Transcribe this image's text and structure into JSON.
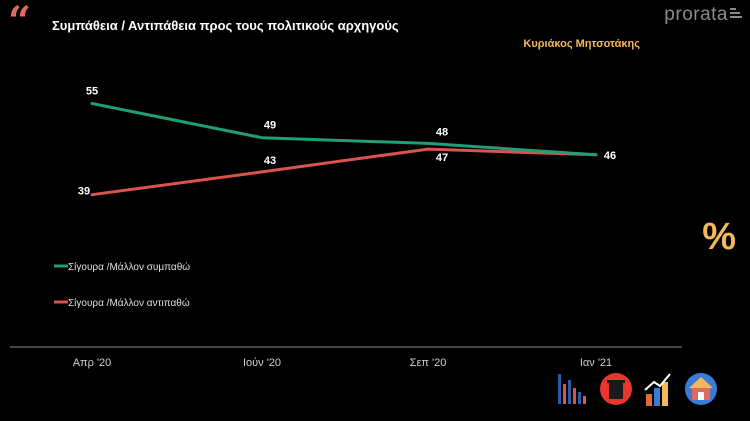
{
  "header": {
    "quote_glyph": "“",
    "title": "Συμπάθεια / Αντιπάθεια προς τους πολιτικούς αρχηγούς",
    "brand": "prorata",
    "subject": "Κυριάκος Μητσοτάκης"
  },
  "colors": {
    "accent_red": "#e06a60",
    "accent_gold": "#f2b85a"
  },
  "icons": {
    "percent": "%",
    "bottom": [
      "bar-chart-icon",
      "trash-bin-icon",
      "growth-chart-icon",
      "house-people-icon"
    ]
  },
  "chart_data": {
    "type": "line",
    "categories": [
      "Απρ '20",
      "Ιούν '20",
      "Σεπ '20",
      "Ιαν '21"
    ],
    "series": [
      {
        "name": "Σίγουρα /Μάλλον συμπαθώ",
        "values": [
          55,
          49,
          48,
          46
        ],
        "color": "#1f9e77"
      },
      {
        "name": "Σίγουρα /Μάλλον αντιπαθώ",
        "values": [
          39,
          43,
          47,
          46
        ],
        "color": "#d9534f"
      }
    ],
    "data_labels": [
      [
        "55",
        "49",
        "48",
        ""
      ],
      [
        "39",
        "43",
        "47",
        "46"
      ]
    ],
    "grid": false,
    "legend_position": "left"
  }
}
